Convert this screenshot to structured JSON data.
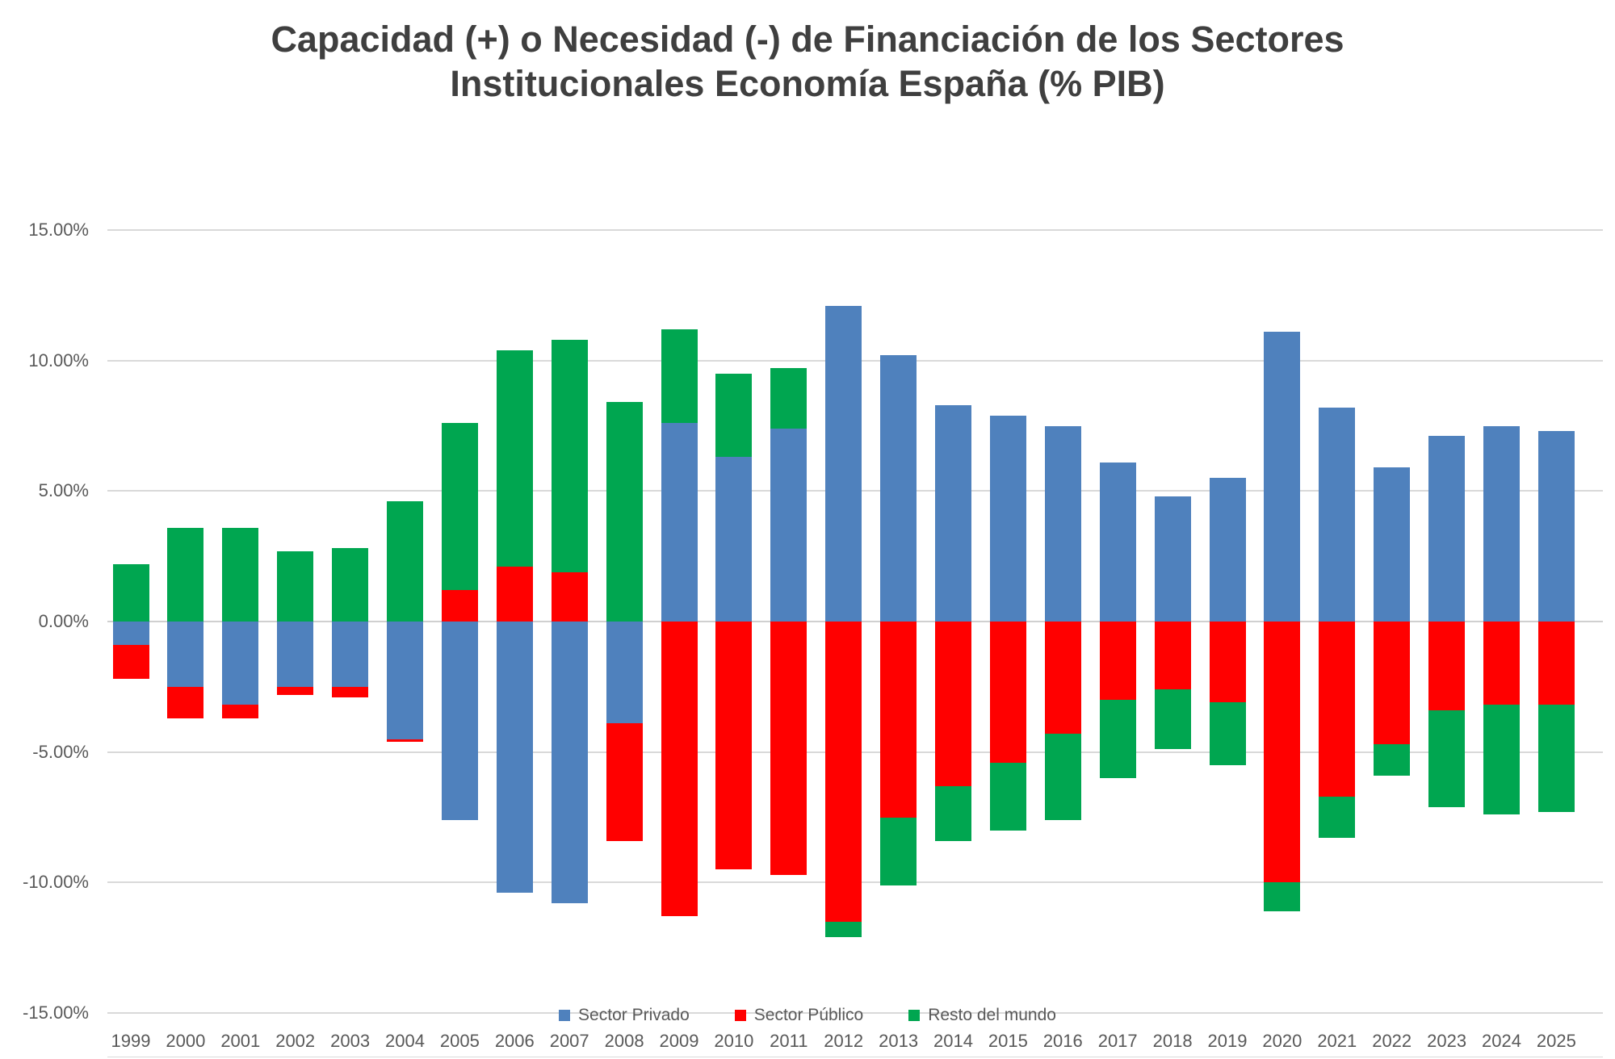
{
  "title": {
    "line1": "Capacidad (+) o Necesidad (-) de Financiación de los Sectores",
    "line2": "Institucionales Economía España (% PIB)"
  },
  "y_axis": {
    "tick_labels": [
      "15.00%",
      "10.00%",
      "5.00%",
      "0.00%",
      "-5.00%",
      "-10.00%",
      "-15.00%"
    ],
    "tick_values": [
      15,
      10,
      5,
      0,
      -5,
      -10,
      -15
    ],
    "max": 15,
    "min": -15,
    "step": 5
  },
  "legend": {
    "items": [
      {
        "label": "Sector Privado",
        "color": "#4F81BD"
      },
      {
        "label": "Sector Público",
        "color": "#FF0000"
      },
      {
        "label": "Resto del mundo",
        "color": "#00A650"
      }
    ],
    "position": "bottom"
  },
  "colors": {
    "private_sector": "#4F81BD",
    "public_sector": "#FF0000",
    "rest_of_world": "#00A650",
    "gridline": "#d9d9d9",
    "title_text": "#3f3f3f",
    "axis_text": "#595959",
    "background": "#ffffff"
  },
  "chart_data": {
    "type": "bar",
    "stacked": true,
    "title": "Capacidad (+) o Necesidad (-) de Financiación de los Sectores Institucionales Economía España (% PIB)",
    "xlabel": "",
    "ylabel": "",
    "ylim": [
      -15,
      15
    ],
    "grid": true,
    "legend_position": "bottom",
    "value_unit": "% PIB",
    "categories": [
      "1999",
      "2000",
      "2001",
      "2002",
      "2003",
      "2004",
      "2005",
      "2006",
      "2007",
      "2008",
      "2009",
      "2010",
      "2011",
      "2012",
      "2013",
      "2014",
      "2015",
      "2016",
      "2017",
      "2018",
      "2019",
      "2020",
      "2021",
      "2022",
      "2023",
      "2024",
      "2025"
    ],
    "series": [
      {
        "name": "Sector Privado",
        "key": "sector-privado",
        "color": "#4F81BD",
        "values": [
          -0.9,
          -2.5,
          -3.2,
          -2.5,
          -2.5,
          -4.5,
          -7.6,
          -10.4,
          -10.8,
          -3.9,
          7.6,
          6.3,
          7.4,
          12.1,
          10.2,
          8.3,
          7.9,
          7.5,
          6.1,
          4.8,
          5.5,
          11.1,
          8.2,
          5.9,
          7.1,
          7.5,
          7.3
        ]
      },
      {
        "name": "Sector Público",
        "key": "sector-publico",
        "color": "#FF0000",
        "values": [
          -1.3,
          -1.2,
          -0.5,
          -0.3,
          -0.4,
          -0.1,
          1.2,
          2.1,
          1.9,
          -4.5,
          -11.3,
          -9.5,
          -9.7,
          -11.5,
          -7.5,
          -6.3,
          -5.4,
          -4.3,
          -3.0,
          -2.6,
          -3.1,
          -10.0,
          -6.7,
          -4.7,
          -3.4,
          -3.2,
          -3.2
        ]
      },
      {
        "name": "Resto del mundo",
        "key": "resto-del-mundo",
        "color": "#00A650",
        "values": [
          2.2,
          3.6,
          3.6,
          2.7,
          2.8,
          4.6,
          6.4,
          8.3,
          8.9,
          8.4,
          3.6,
          3.2,
          2.3,
          -0.6,
          -2.6,
          -2.1,
          -2.6,
          -3.3,
          -3.0,
          -2.3,
          -2.4,
          -1.1,
          -1.6,
          -1.2,
          -3.7,
          -4.2,
          -4.1
        ]
      }
    ]
  }
}
